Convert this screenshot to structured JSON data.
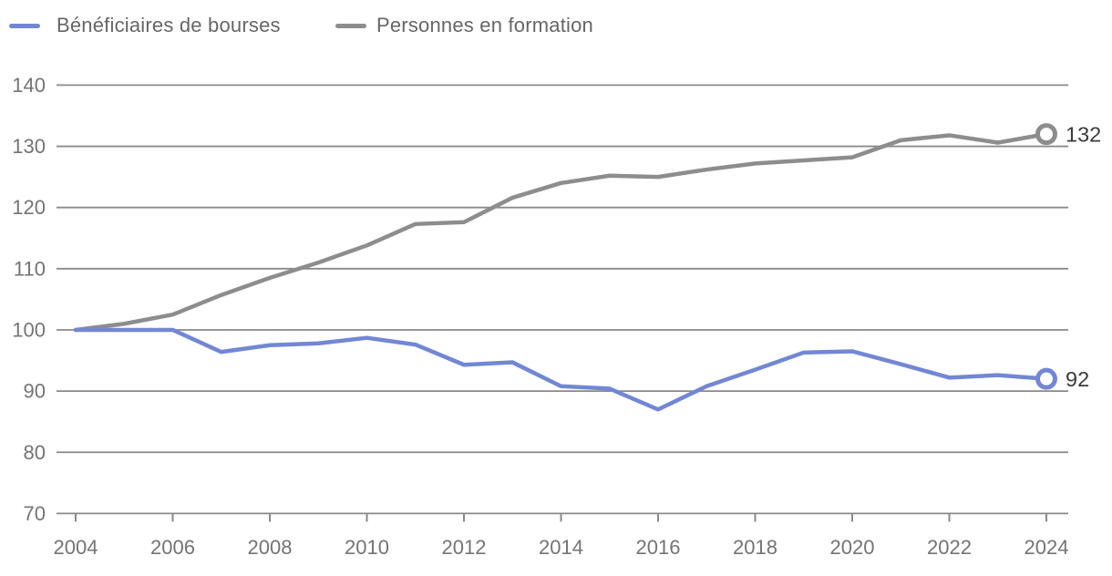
{
  "legend": {
    "items": [
      {
        "label": "Bénéficiaires de bourses",
        "color": "#7287d4"
      },
      {
        "label": "Personnes en formation",
        "color": "#8d8d8d"
      }
    ]
  },
  "colors": {
    "series_blue": "#7287d4",
    "series_gray": "#8d8d8d",
    "gridline": "#8a8a8a",
    "tick_label": "#747474",
    "legend_text": "#666666",
    "end_label_text": "#3a3a3a",
    "background": "#ffffff"
  },
  "chart_data": {
    "type": "line",
    "title": "",
    "xlabel": "",
    "ylabel": "",
    "x": [
      2004,
      2005,
      2006,
      2007,
      2008,
      2009,
      2010,
      2011,
      2012,
      2013,
      2014,
      2015,
      2016,
      2017,
      2018,
      2019,
      2020,
      2021,
      2022,
      2023,
      2024
    ],
    "series": [
      {
        "name": "Bénéficiaires de bourses",
        "color": "#7287d4",
        "values": [
          100,
          100,
          100,
          96.4,
          97.5,
          97.8,
          98.7,
          97.6,
          94.3,
          94.7,
          90.8,
          90.4,
          87,
          90.8,
          93.5,
          96.3,
          96.5,
          94.4,
          92.2,
          92.6,
          92
        ],
        "end_label": "92"
      },
      {
        "name": "Personnes en formation",
        "color": "#8d8d8d",
        "values": [
          100,
          101,
          102.5,
          105.7,
          108.5,
          111,
          113.8,
          117.3,
          117.6,
          121.6,
          124,
          125.2,
          125,
          126.2,
          127.2,
          127.7,
          128.2,
          131,
          131.8,
          130.6,
          132
        ],
        "end_label": "132"
      }
    ],
    "ylim": [
      70,
      140
    ],
    "y_ticks": [
      70,
      80,
      90,
      100,
      110,
      120,
      130,
      140
    ],
    "x_ticks": [
      2004,
      2006,
      2008,
      2010,
      2012,
      2014,
      2016,
      2018,
      2020,
      2022,
      2024
    ],
    "grid": true,
    "legend_position": "top-left",
    "end_markers": "open-circle"
  }
}
